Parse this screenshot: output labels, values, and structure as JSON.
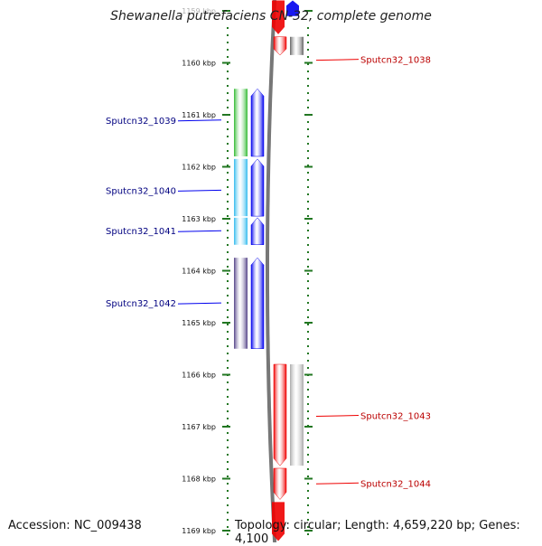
{
  "title": "Shewanella putrefaciens CN-32, complete genome",
  "accession": "Accession: NC_009438",
  "topology": "Topology: circular; Length: 4,659,220 bp; Genes: 4,100",
  "ticks": [
    {
      "kbp": 1159,
      "label": "1159 kbp"
    },
    {
      "kbp": 1160,
      "label": "1160 kbp"
    },
    {
      "kbp": 1161,
      "label": "1161 kbp"
    },
    {
      "kbp": 1162,
      "label": "1162 kbp"
    },
    {
      "kbp": 1163,
      "label": "1163 kbp"
    },
    {
      "kbp": 1164,
      "label": "1164 kbp"
    },
    {
      "kbp": 1165,
      "label": "1165 kbp"
    },
    {
      "kbp": 1166,
      "label": "1166 kbp"
    },
    {
      "kbp": 1167,
      "label": "1167 kbp"
    },
    {
      "kbp": 1168,
      "label": "1168 kbp"
    },
    {
      "kbp": 1169,
      "label": "1169 kbp"
    }
  ],
  "colors": {
    "forward": "#0000ee",
    "reverse": "#ee0000",
    "tick": "#227722",
    "forward_label": "#000080",
    "reverse_label": "#bb0000",
    "backbone": "#777777"
  },
  "genes": [
    {
      "id": "Sputcn32_1038",
      "label": "Sputcn32_1038",
      "strand": "reverse",
      "start_kbp": 1159.5,
      "end_kbp": 1159.85,
      "cog_color": "#666666",
      "label_kbp": 1159.95
    },
    {
      "id": "Sputcn32_1039",
      "label": "Sputcn32_1039",
      "strand": "forward",
      "start_kbp": 1160.5,
      "end_kbp": 1161.8,
      "cog_color": "#33bb33",
      "label_kbp": 1161.1
    },
    {
      "id": "Sputcn32_1040",
      "label": "Sputcn32_1040",
      "strand": "forward",
      "start_kbp": 1161.85,
      "end_kbp": 1162.95,
      "cog_color": "#33bbee",
      "label_kbp": 1162.45
    },
    {
      "id": "Sputcn32_1041",
      "label": "Sputcn32_1041",
      "strand": "forward",
      "start_kbp": 1162.98,
      "end_kbp": 1163.5,
      "cog_color": "#33bbee",
      "label_kbp": 1163.23
    },
    {
      "id": "Sputcn32_1042",
      "label": "Sputcn32_1042",
      "strand": "forward",
      "start_kbp": 1163.75,
      "end_kbp": 1165.5,
      "cog_color": "#554488",
      "label_kbp": 1164.62
    },
    {
      "id": "Sputcn32_1043",
      "label": "Sputcn32_1043",
      "strand": "reverse",
      "start_kbp": 1165.8,
      "end_kbp": 1167.75,
      "cog_color": "#aaaaaa",
      "label_kbp": 1166.8
    },
    {
      "id": "Sputcn32_1044",
      "label": "Sputcn32_1044",
      "strand": "reverse",
      "start_kbp": 1167.8,
      "end_kbp": 1168.4,
      "cog_color": null,
      "label_kbp": 1168.1
    }
  ],
  "partial_genes": [
    {
      "strand": "reverse",
      "start_kbp": 1158.8,
      "end_kbp": 1159.45
    },
    {
      "strand": "forward",
      "start_kbp": 1158.8,
      "end_kbp": 1159.1
    },
    {
      "strand": "reverse",
      "start_kbp": 1168.45,
      "end_kbp": 1169.2
    }
  ]
}
